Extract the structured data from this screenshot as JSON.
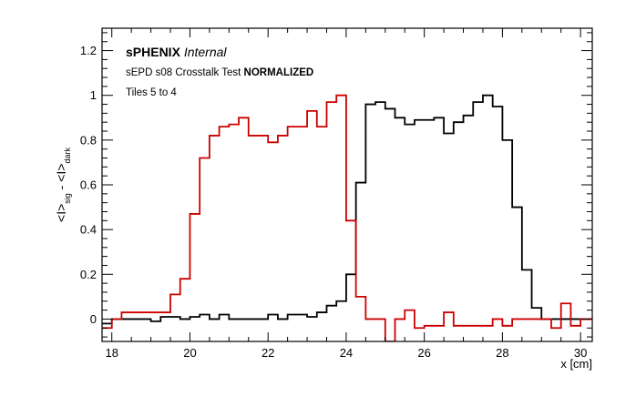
{
  "chart_data": {
    "type": "line",
    "title": "",
    "xlabel": "x [cm]",
    "ylabel_parts": {
      "main1": "<I>",
      "sub1": "sig",
      "sep": " - ",
      "main2": "<I>",
      "sub2": "dark"
    },
    "annotations": {
      "brand_bold": "sPHENIX",
      "brand_italic": "Internal",
      "line2_normal": "sEPD s08 Crosstalk Test ",
      "line2_bold": "NORMALIZED",
      "line3": "Tiles 5 to 4"
    },
    "xlim": [
      17.75,
      30.3
    ],
    "ylim": [
      -0.1,
      1.3
    ],
    "x_ticks": [
      18,
      20,
      22,
      24,
      26,
      28,
      30
    ],
    "x_tick_labels": [
      "18",
      "20",
      "22",
      "24",
      "26",
      "28",
      "30"
    ],
    "y_ticks": [
      0,
      0.2,
      0.4,
      0.6,
      0.8,
      1,
      1.2
    ],
    "y_tick_labels": [
      "0",
      "0.2",
      "0.4",
      "0.6",
      "0.8",
      "1",
      "1.2"
    ],
    "bin_width": 0.25,
    "bin_start": 17.75,
    "grid": false,
    "series": [
      {
        "color": "#000000",
        "values": [
          -0.02,
          0.0,
          0.0,
          0.0,
          0.0,
          -0.01,
          0.01,
          0.01,
          0.0,
          0.01,
          0.02,
          0.0,
          0.02,
          0.0,
          0.0,
          0.0,
          0.0,
          0.02,
          0.0,
          0.02,
          0.02,
          0.01,
          0.03,
          0.06,
          0.08,
          0.2,
          0.61,
          0.96,
          0.97,
          0.94,
          0.9,
          0.87,
          0.89,
          0.89,
          0.9,
          0.83,
          0.88,
          0.91,
          0.97,
          1.0,
          0.95,
          0.8,
          0.5,
          0.22,
          0.05,
          0.0,
          0.0,
          0.0,
          0.0,
          0.0
        ]
      },
      {
        "color": "#cc0000",
        "values": [
          -0.04,
          0.0,
          0.03,
          0.03,
          0.03,
          0.03,
          0.03,
          0.11,
          0.18,
          0.47,
          0.72,
          0.82,
          0.86,
          0.87,
          0.9,
          0.82,
          0.82,
          0.79,
          0.82,
          0.86,
          0.86,
          0.93,
          0.86,
          0.97,
          1.0,
          0.44,
          0.1,
          0.0,
          0.0,
          -0.1,
          0.0,
          0.04,
          -0.04,
          -0.03,
          -0.03,
          0.03,
          -0.03,
          -0.03,
          -0.03,
          -0.03,
          0.0,
          -0.03,
          0.0,
          0.0,
          0.0,
          0.0,
          -0.04,
          0.07,
          -0.03,
          0.0,
          0.0,
          0.0
        ]
      }
    ]
  }
}
